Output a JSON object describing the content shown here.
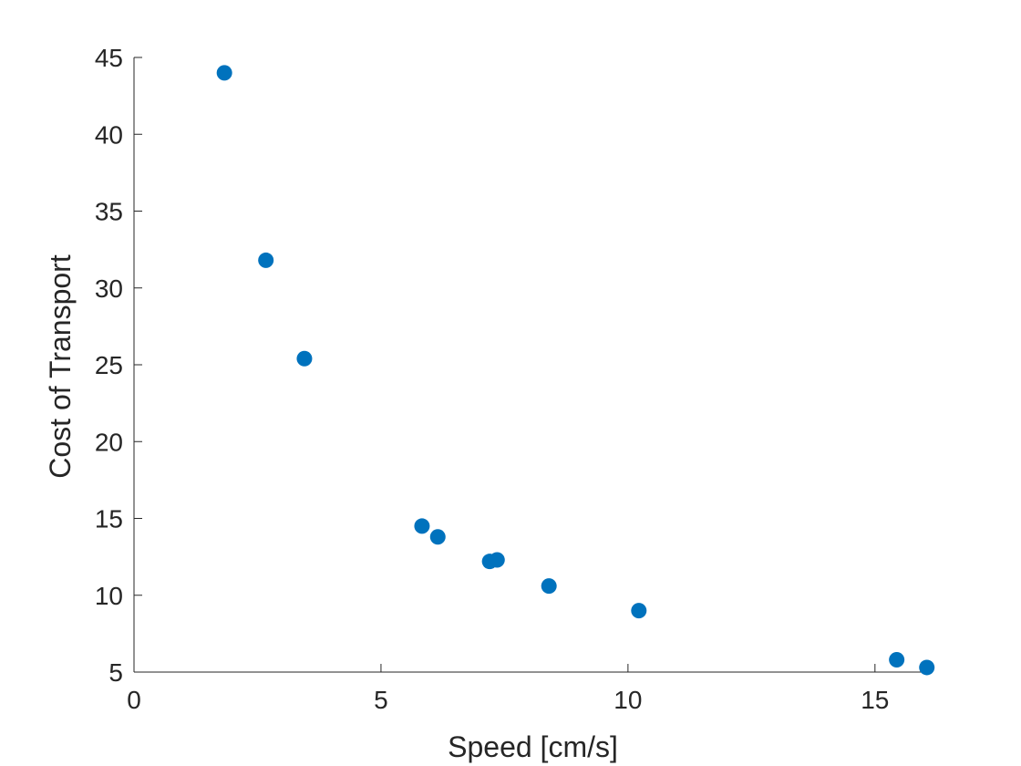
{
  "chart_data": {
    "type": "scatter",
    "xlabel": "Speed [cm/s]",
    "ylabel": "Cost of Transport",
    "xlim": [
      0,
      16
    ],
    "ylim": [
      5,
      45
    ],
    "xticks": [
      0,
      5,
      10,
      15
    ],
    "yticks": [
      5,
      10,
      15,
      20,
      25,
      30,
      35,
      40,
      45
    ],
    "grid": false,
    "marker_color": "#0072BD",
    "series": [
      {
        "points": [
          {
            "x": 1.83,
            "y": 44.0
          },
          {
            "x": 2.67,
            "y": 31.8
          },
          {
            "x": 3.45,
            "y": 25.4
          },
          {
            "x": 5.83,
            "y": 14.5
          },
          {
            "x": 6.15,
            "y": 13.8
          },
          {
            "x": 7.2,
            "y": 12.2
          },
          {
            "x": 7.35,
            "y": 12.3
          },
          {
            "x": 8.4,
            "y": 10.6
          },
          {
            "x": 10.22,
            "y": 9.0
          },
          {
            "x": 15.44,
            "y": 5.8
          },
          {
            "x": 16.05,
            "y": 5.3
          }
        ]
      }
    ]
  }
}
